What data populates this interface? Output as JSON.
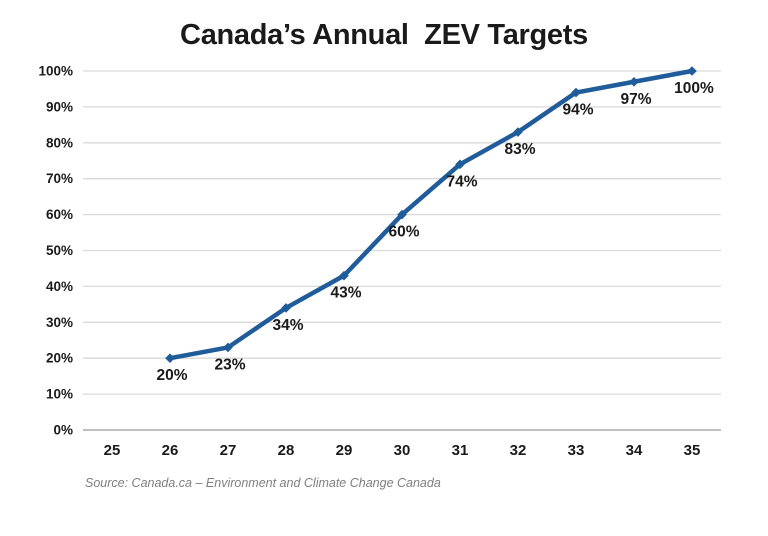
{
  "page": {
    "background": "#FFFFFF"
  },
  "colors": {
    "line": "#1F5C99",
    "marker": "#1F5C99",
    "gridline": "#D9D9D9",
    "axis_line": "#BFBFBF",
    "tick_text": "#1A1A1A",
    "data_label_text": "#1A1A1A",
    "title_text": "#1A1A1A",
    "source_text": "#7F7F7F"
  },
  "source_note": "Source: Canada.ca – Environment and Climate Change Canada",
  "chart_data": {
    "type": "line",
    "title": "Canada’s Annual  ZEV Targets",
    "xlabel": "",
    "ylabel": "",
    "categories": [
      "25",
      "26",
      "27",
      "28",
      "29",
      "30",
      "31",
      "32",
      "33",
      "34",
      "35"
    ],
    "series": [
      {
        "points": [
          {
            "x": "26",
            "y": 20,
            "label": "20%"
          },
          {
            "x": "27",
            "y": 23,
            "label": "23%"
          },
          {
            "x": "28",
            "y": 34,
            "label": "34%"
          },
          {
            "x": "29",
            "y": 43,
            "label": "43%"
          },
          {
            "x": "30",
            "y": 60,
            "label": "60%"
          },
          {
            "x": "31",
            "y": 74,
            "label": "74%"
          },
          {
            "x": "32",
            "y": 83,
            "label": "83%"
          },
          {
            "x": "33",
            "y": 94,
            "label": "94%"
          },
          {
            "x": "34",
            "y": 97,
            "label": "97%"
          },
          {
            "x": "35",
            "y": 100,
            "label": "100%"
          }
        ]
      }
    ],
    "ylim": [
      0,
      100
    ],
    "ytick_step": 10,
    "ytick_suffix": "%",
    "grid": "horizontal",
    "legend": "none"
  }
}
